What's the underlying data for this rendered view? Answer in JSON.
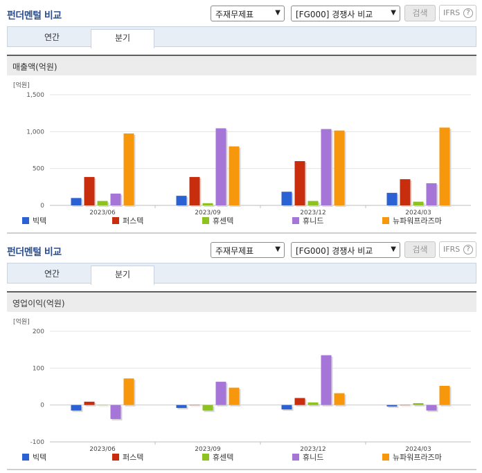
{
  "panels": [
    {
      "title": "펀더멘털 비교",
      "select1": "주재무제표",
      "select2": "[FG000] 경쟁사 비교",
      "search": "검색",
      "ifrs": "IFRS",
      "help": "?",
      "tabs": [
        "연간",
        "분기"
      ],
      "active_tab": "분기",
      "metric": "매출액(억원)"
    },
    {
      "title": "펀더멘털 비교",
      "select1": "주재무제표",
      "select2": "[FG000] 경쟁사 비교",
      "search": "검색",
      "ifrs": "IFRS",
      "help": "?",
      "tabs": [
        "연간",
        "분기"
      ],
      "active_tab": "분기",
      "metric": "영업이익(억원)"
    }
  ],
  "chart_data": [
    {
      "type": "bar",
      "unit_label": "[억원]",
      "categories": [
        "2023/06",
        "2023/09",
        "2023/12",
        "2024/03"
      ],
      "ylim": [
        0,
        1500
      ],
      "yticks": [
        "1,500",
        "1,000",
        "500",
        "0"
      ],
      "ytick_values": [
        1500,
        1000,
        500,
        0
      ],
      "series": [
        {
          "name": "빅텍",
          "color": "#2a62d3",
          "values": [
            100,
            130,
            185,
            170
          ]
        },
        {
          "name": "퍼스텍",
          "color": "#c82e0d",
          "values": [
            385,
            385,
            600,
            355
          ]
        },
        {
          "name": "휴센텍",
          "color": "#8dc21f",
          "values": [
            60,
            30,
            60,
            50
          ]
        },
        {
          "name": "휴니드",
          "color": "#a576d8",
          "values": [
            160,
            1045,
            1035,
            300
          ]
        },
        {
          "name": "뉴파워프라즈마",
          "color": "#f7970c",
          "values": [
            975,
            800,
            1015,
            1055
          ]
        }
      ]
    },
    {
      "type": "bar",
      "unit_label": "[억원]",
      "categories": [
        "2023/06",
        "2023/09",
        "2023/12",
        "2024/03"
      ],
      "ylim": [
        -100,
        200
      ],
      "yticks": [
        "200",
        "100",
        "0",
        "-100"
      ],
      "ytick_values": [
        200,
        100,
        0,
        -100
      ],
      "series": [
        {
          "name": "빅텍",
          "color": "#2a62d3",
          "values": [
            -15,
            -8,
            -12,
            -4
          ]
        },
        {
          "name": "퍼스텍",
          "color": "#c82e0d",
          "values": [
            9,
            0,
            19,
            0
          ]
        },
        {
          "name": "휴센텍",
          "color": "#8dc21f",
          "values": [
            0,
            -15,
            7,
            5
          ]
        },
        {
          "name": "휴니드",
          "color": "#a576d8",
          "values": [
            -38,
            63,
            135,
            -15
          ]
        },
        {
          "name": "뉴파워프라즈마",
          "color": "#f7970c",
          "values": [
            72,
            47,
            32,
            52
          ]
        }
      ]
    }
  ]
}
